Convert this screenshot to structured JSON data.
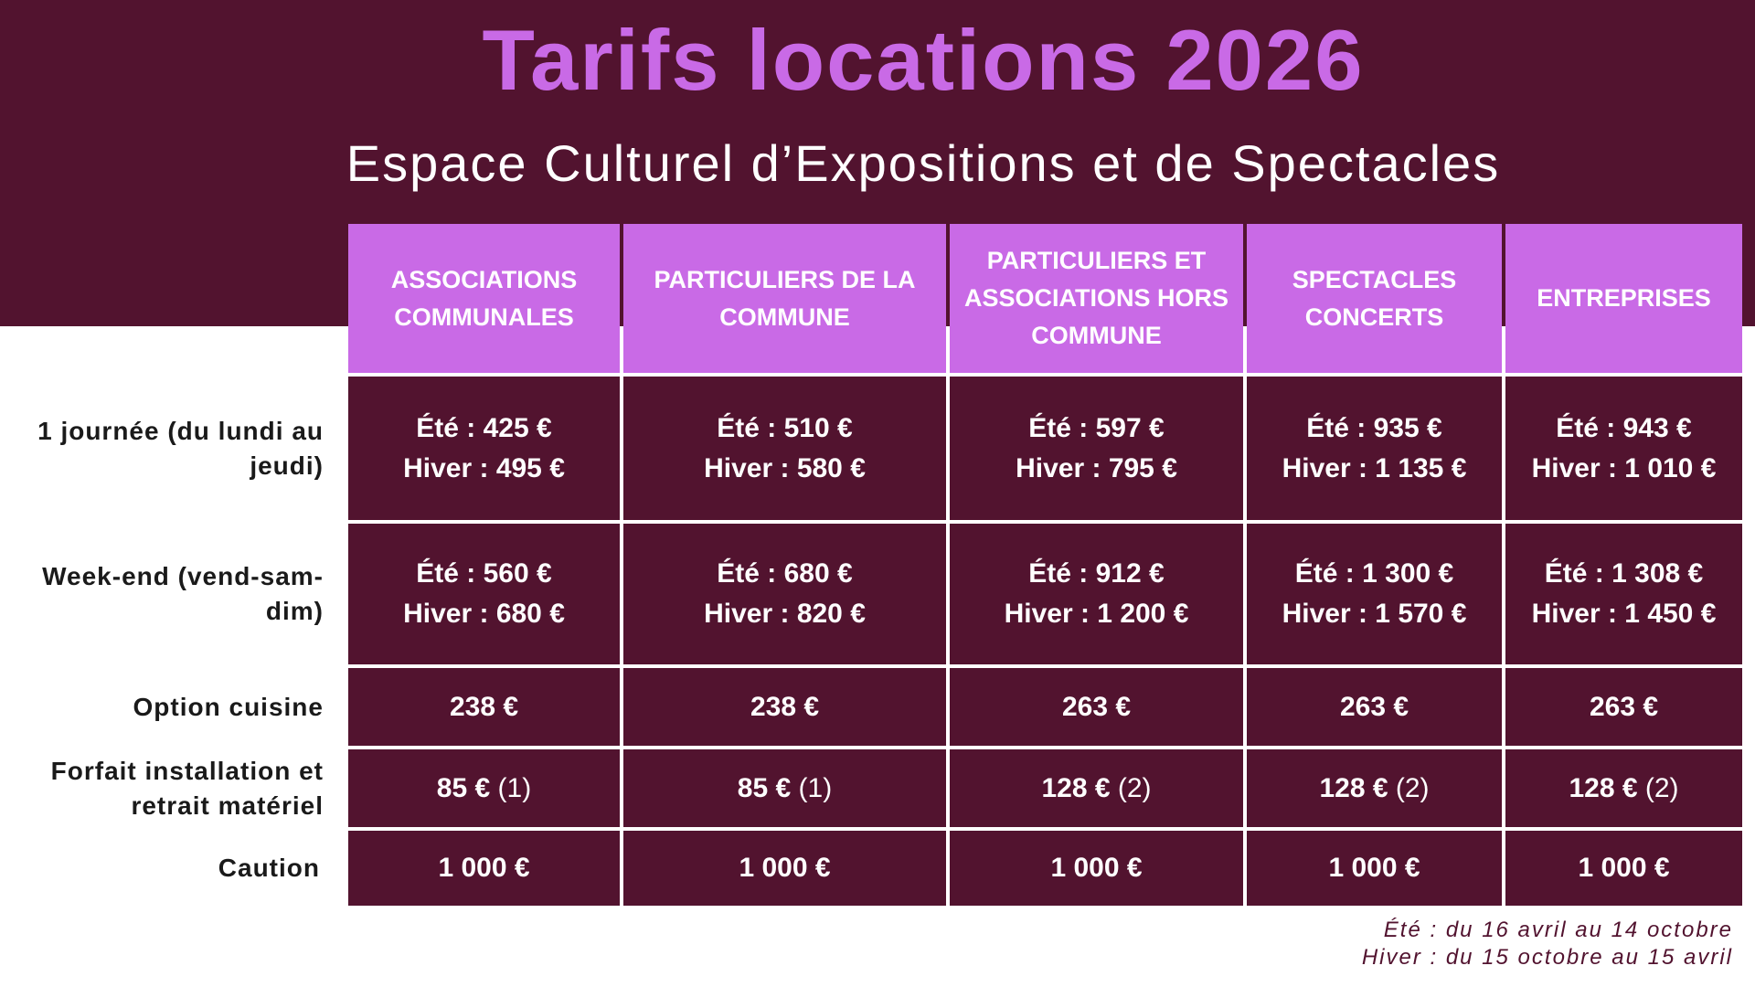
{
  "header": {
    "title": "Tarifs locations 2026",
    "subtitle": "Espace Culturel d’Expositions et de Spectacles"
  },
  "colors": {
    "dark": "#52132f",
    "accent": "#c96ae6"
  },
  "table": {
    "columns": [
      "ASSOCIATIONS COMMUNALES",
      "PARTICULIERS DE LA COMMUNE",
      "PARTICULIERS ET ASSOCIATIONS HORS COMMUNE",
      "SPECTACLES CONCERTS",
      "ENTREPRISES"
    ],
    "rows": [
      {
        "label": "1 journée (du lundi au jeudi)",
        "cells": [
          [
            "Été : 425 €",
            "Hiver : 495 €"
          ],
          [
            "Été : 510 €",
            "Hiver : 580 €"
          ],
          [
            "Été : 597 €",
            "Hiver : 795 €"
          ],
          [
            "Été : 935 €",
            "Hiver : 1 135 €"
          ],
          [
            "Été : 943 €",
            "Hiver : 1 010 €"
          ]
        ]
      },
      {
        "label": "Week-end (vend-sam-dim)",
        "cells": [
          [
            "Été : 560 €",
            "Hiver : 680 €"
          ],
          [
            "Été : 680 €",
            "Hiver : 820 €"
          ],
          [
            "Été : 912 €",
            "Hiver : 1 200 €"
          ],
          [
            "Été : 1 300 €",
            "Hiver : 1 570 €"
          ],
          [
            "Été : 1 308 €",
            "Hiver : 1 450 €"
          ]
        ]
      },
      {
        "label": "Option cuisine",
        "cells": [
          [
            "238 €"
          ],
          [
            "238 €"
          ],
          [
            "263 €"
          ],
          [
            "263 €"
          ],
          [
            "263 €"
          ]
        ]
      },
      {
        "label": "Forfait installation et retrait matériel",
        "cells": [
          {
            "price": "85 €",
            "note": "(1)"
          },
          {
            "price": "85 €",
            "note": "(1)"
          },
          {
            "price": "128 €",
            "note": "(2)"
          },
          {
            "price": "128 €",
            "note": "(2)"
          },
          {
            "price": "128 €",
            "note": "(2)"
          }
        ]
      },
      {
        "label": "Caution",
        "cells": [
          [
            "1 000 €"
          ],
          [
            "1 000 €"
          ],
          [
            "1 000 €"
          ],
          [
            "1 000 €"
          ],
          [
            "1 000 €"
          ]
        ]
      }
    ]
  },
  "footer": {
    "summer": "Été : du 16 avril au 14 octobre",
    "winter": "Hiver : du 15 octobre au 15 avril"
  }
}
